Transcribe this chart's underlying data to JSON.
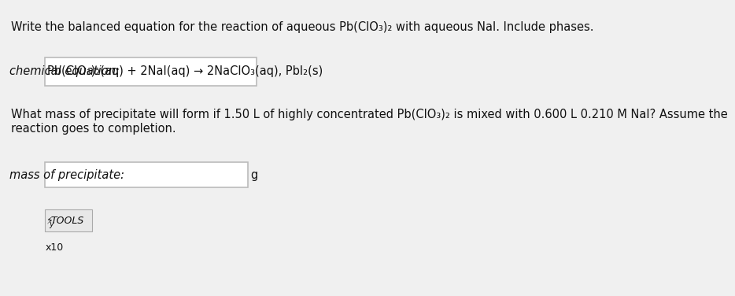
{
  "title_text": "Write the balanced equation for the reaction of aqueous Pb(ClO",
  "title_sub": "3",
  "title_text2": ")",
  "title_sub2": "2",
  "title_text3": " with aqueous NaI. Include phases.",
  "label_chemical": "chemical equation:",
  "equation_text": "Pb(ClO₃)₂(aq) + 2NaI(aq) → 2NaClO₃(aq), PbI₂(s)",
  "question_line1": "What mass of precipitate will form if 1.50 L of highly concentrated Pb(ClO",
  "question_sub1": "3",
  "question_text1b": ")",
  "question_sub2": "2",
  "question_line1c": " is mixed with 0.600 L 0.210 M NaI? Assume the",
  "question_line2": "reaction goes to completion.",
  "label_mass": "mass of precipitate:",
  "unit_g": "g",
  "tools_label": "TOOLS",
  "x10_label": "x10",
  "bg_color": "#f0f0f0",
  "box_color": "#ffffff",
  "box_edge_color": "#bbbbbb",
  "text_color": "#111111",
  "title_fontsize": 10.5,
  "label_fontsize": 10.5,
  "eq_fontsize": 10.5,
  "tools_fontsize": 9
}
